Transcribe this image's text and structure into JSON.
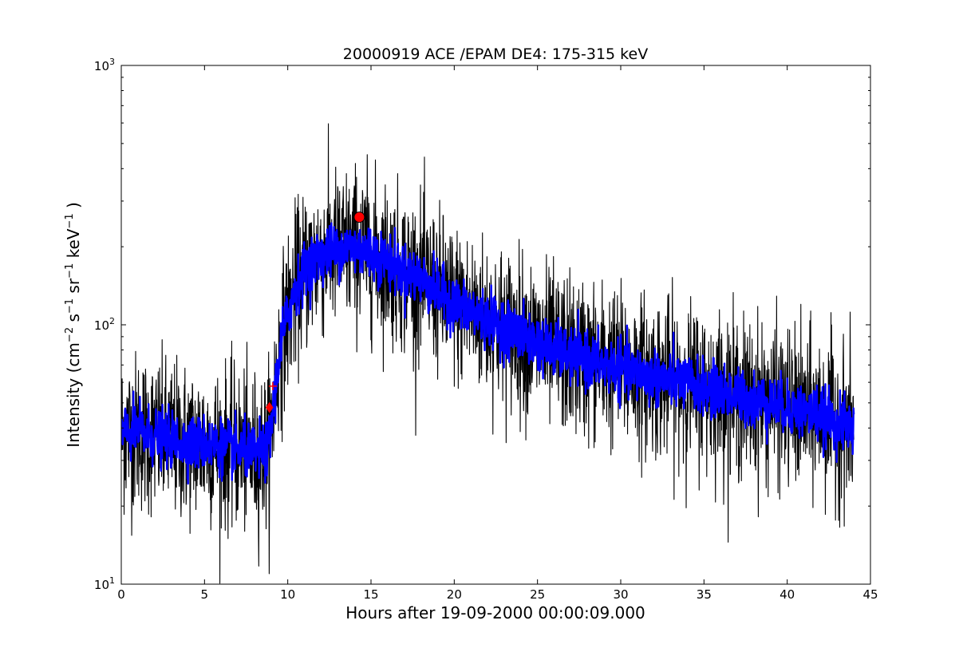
{
  "chart_data": {
    "type": "line",
    "title": "20000919 ACE /EPAM DE4: 175-315 keV",
    "xlabel": "Hours after 19-09-2000 00:00:09.000",
    "ylabel_main": "Intensity (cm",
    "ylabel_parts": [
      "−2",
      " s",
      "−1",
      " sr",
      "−1",
      " keV",
      "−1",
      " )"
    ],
    "xlim": [
      0,
      45
    ],
    "ylim": [
      10,
      1000
    ],
    "yscale": "log",
    "x_ticks": [
      0,
      5,
      10,
      15,
      20,
      25,
      30,
      35,
      40,
      45
    ],
    "x_tick_labels": [
      "0",
      "5",
      "10",
      "15",
      "20",
      "25",
      "30",
      "35",
      "40",
      "45"
    ],
    "y_ticks": [
      10,
      100,
      1000
    ],
    "y_tick_exponents": [
      "1",
      "2",
      "3"
    ],
    "grid": false,
    "legend": "none",
    "colors": {
      "raw": "#000000",
      "smoothed": "#0000ff",
      "markers": "#ff0000"
    },
    "series": [
      {
        "style": "raw-noisy",
        "color": "#000000",
        "x": [
          0,
          1,
          2,
          3,
          4,
          5,
          6,
          7,
          8,
          8.8,
          9.0,
          9.3,
          9.6,
          10,
          10.5,
          11,
          11.5,
          12,
          13,
          14,
          15,
          16,
          17,
          18,
          19,
          20,
          21,
          22,
          23,
          24,
          25,
          26,
          27,
          28,
          29,
          30,
          31,
          32,
          33,
          34,
          35,
          36,
          37,
          38,
          39,
          40,
          41,
          42,
          43,
          44
        ],
        "y": [
          38,
          39,
          37,
          36,
          35,
          35,
          34,
          33,
          32,
          33,
          40,
          60,
          85,
          110,
          140,
          160,
          175,
          185,
          195,
          200,
          190,
          175,
          160,
          150,
          135,
          120,
          112,
          105,
          98,
          92,
          85,
          80,
          76,
          73,
          70,
          68,
          65,
          63,
          61,
          59,
          57,
          55,
          53,
          51,
          50,
          48,
          46,
          45,
          42,
          40
        ],
        "noise_amplitude": 0.35
      },
      {
        "style": "smoothed",
        "color": "#0000ff",
        "x": [
          0,
          1,
          2,
          3,
          4,
          5,
          6,
          7,
          8,
          8.8,
          9.0,
          9.3,
          9.6,
          10,
          10.5,
          11,
          11.5,
          12,
          13,
          14,
          15,
          16,
          17,
          18,
          19,
          20,
          21,
          22,
          23,
          24,
          25,
          26,
          27,
          28,
          29,
          30,
          31,
          32,
          33,
          34,
          35,
          36,
          37,
          38,
          39,
          40,
          41,
          42,
          43,
          44
        ],
        "y": [
          38,
          39,
          37,
          36,
          35,
          35,
          34,
          33,
          32,
          33,
          40,
          60,
          85,
          110,
          140,
          160,
          175,
          185,
          195,
          200,
          190,
          175,
          160,
          150,
          135,
          120,
          112,
          105,
          98,
          92,
          85,
          80,
          76,
          73,
          70,
          68,
          65,
          63,
          61,
          59,
          57,
          55,
          53,
          51,
          50,
          48,
          46,
          45,
          42,
          40
        ],
        "noise_amplitude": 0.12
      }
    ],
    "markers": [
      {
        "shape": "diamond",
        "x": 8.9,
        "y": 48,
        "color": "#ff0000"
      },
      {
        "shape": "circle",
        "x": 14.3,
        "y": 260,
        "color": "#ff0000"
      },
      {
        "shape": "plus",
        "x": 9.1,
        "y": 58,
        "color": "#ff0000"
      }
    ]
  }
}
